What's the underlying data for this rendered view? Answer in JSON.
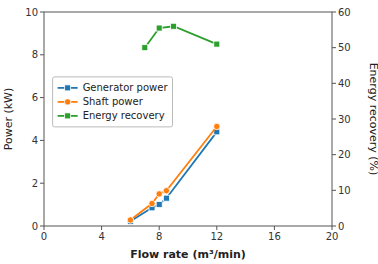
{
  "chart_data": {
    "type": "line",
    "x_label": "Flow rate (m³/min)",
    "y_label": "Power (kW)",
    "y2_label": "Energy recovery (%)",
    "xlim": [
      0,
      20
    ],
    "xticks": [
      0,
      4,
      8,
      12,
      16,
      20
    ],
    "ylim": [
      0,
      10
    ],
    "yticks": [
      0,
      2,
      4,
      6,
      8,
      10
    ],
    "y2lim": [
      0,
      60
    ],
    "y2ticks": [
      0,
      10,
      20,
      30,
      40,
      50,
      60
    ],
    "grid": false,
    "legend": "left",
    "series": [
      {
        "name": "Generator power",
        "x": [
          6,
          7.5,
          8,
          8.5,
          12
        ],
        "values": [
          0.22,
          0.85,
          1.0,
          1.3,
          4.4
        ],
        "color": "#1f77b4",
        "marker": "square",
        "line_style": "solid"
      },
      {
        "name": "Shaft power",
        "x": [
          6,
          7.5,
          8,
          8.5,
          12
        ],
        "values": [
          0.28,
          1.05,
          1.5,
          1.65,
          4.65
        ],
        "color": "#ff7f0e",
        "marker": "circle",
        "line_style": "solid"
      },
      {
        "name": "Energy recovery",
        "x": [
          7,
          8,
          9,
          12
        ],
        "values": [
          50,
          55.5,
          56,
          51
        ],
        "color": "#2ca02c",
        "marker": "square",
        "line_style": "solid",
        "axis": "y2"
      }
    ]
  }
}
